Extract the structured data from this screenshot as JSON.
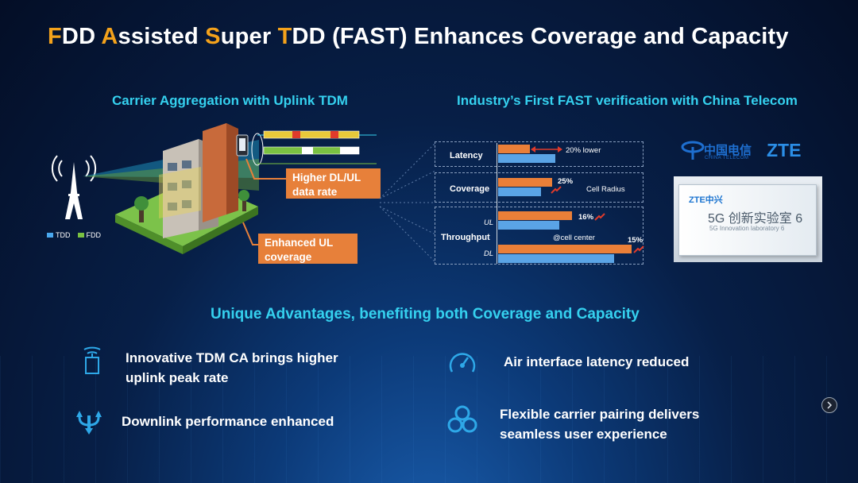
{
  "title": {
    "parts": [
      {
        "text": "F",
        "highlight": true
      },
      {
        "text": "DD ",
        "highlight": false
      },
      {
        "text": "A",
        "highlight": true
      },
      {
        "text": "ssisted ",
        "highlight": false
      },
      {
        "text": "S",
        "highlight": true
      },
      {
        "text": "uper ",
        "highlight": false
      },
      {
        "text": "T",
        "highlight": true
      },
      {
        "text": "DD (FAST) Enhances Coverage and Capacity",
        "highlight": false
      }
    ]
  },
  "left": {
    "heading": "Carrier Aggregation with Uplink TDM",
    "callout1": "Higher DL/UL data rate",
    "callout2": "Enhanced UL coverage",
    "legend": [
      {
        "label": "TDD",
        "color": "#4aa8ee"
      },
      {
        "label": "FDD",
        "color": "#7ac142"
      }
    ]
  },
  "right": {
    "heading": "Industry’s First FAST verification with China Telecom",
    "latency": {
      "label": "Latency",
      "note": "20% lower"
    },
    "coverage": {
      "label": "Coverage",
      "pct": "25%",
      "note": "Cell Radius"
    },
    "throughput": {
      "label": "Throughput",
      "ul": "UL",
      "dl": "DL",
      "ul_pct": "16%",
      "dl_pct": "15%",
      "note": "@cell center"
    },
    "logos": {
      "telecom_cn": "中国电信",
      "telecom_en": "CHINA TELECOM",
      "zte": "ZTE"
    },
    "photo_sign": {
      "brand": "ZTE中兴",
      "line1": "5G 创新实验室 6",
      "line2": "5G Innovation laboratory 6"
    }
  },
  "advantages": {
    "heading": "Unique Advantages, benefiting both Coverage and Capacity",
    "items": [
      "Innovative TDM CA brings higher uplink peak rate",
      "Air interface latency reduced",
      "Downlink performance enhanced",
      "Flexible carrier pairing delivers seamless user experience"
    ]
  },
  "colors": {
    "accent": "#35d1ef",
    "highlight": "#f4a21b",
    "callout": "#e7803a",
    "bar_blue": "#5aa4e6"
  }
}
